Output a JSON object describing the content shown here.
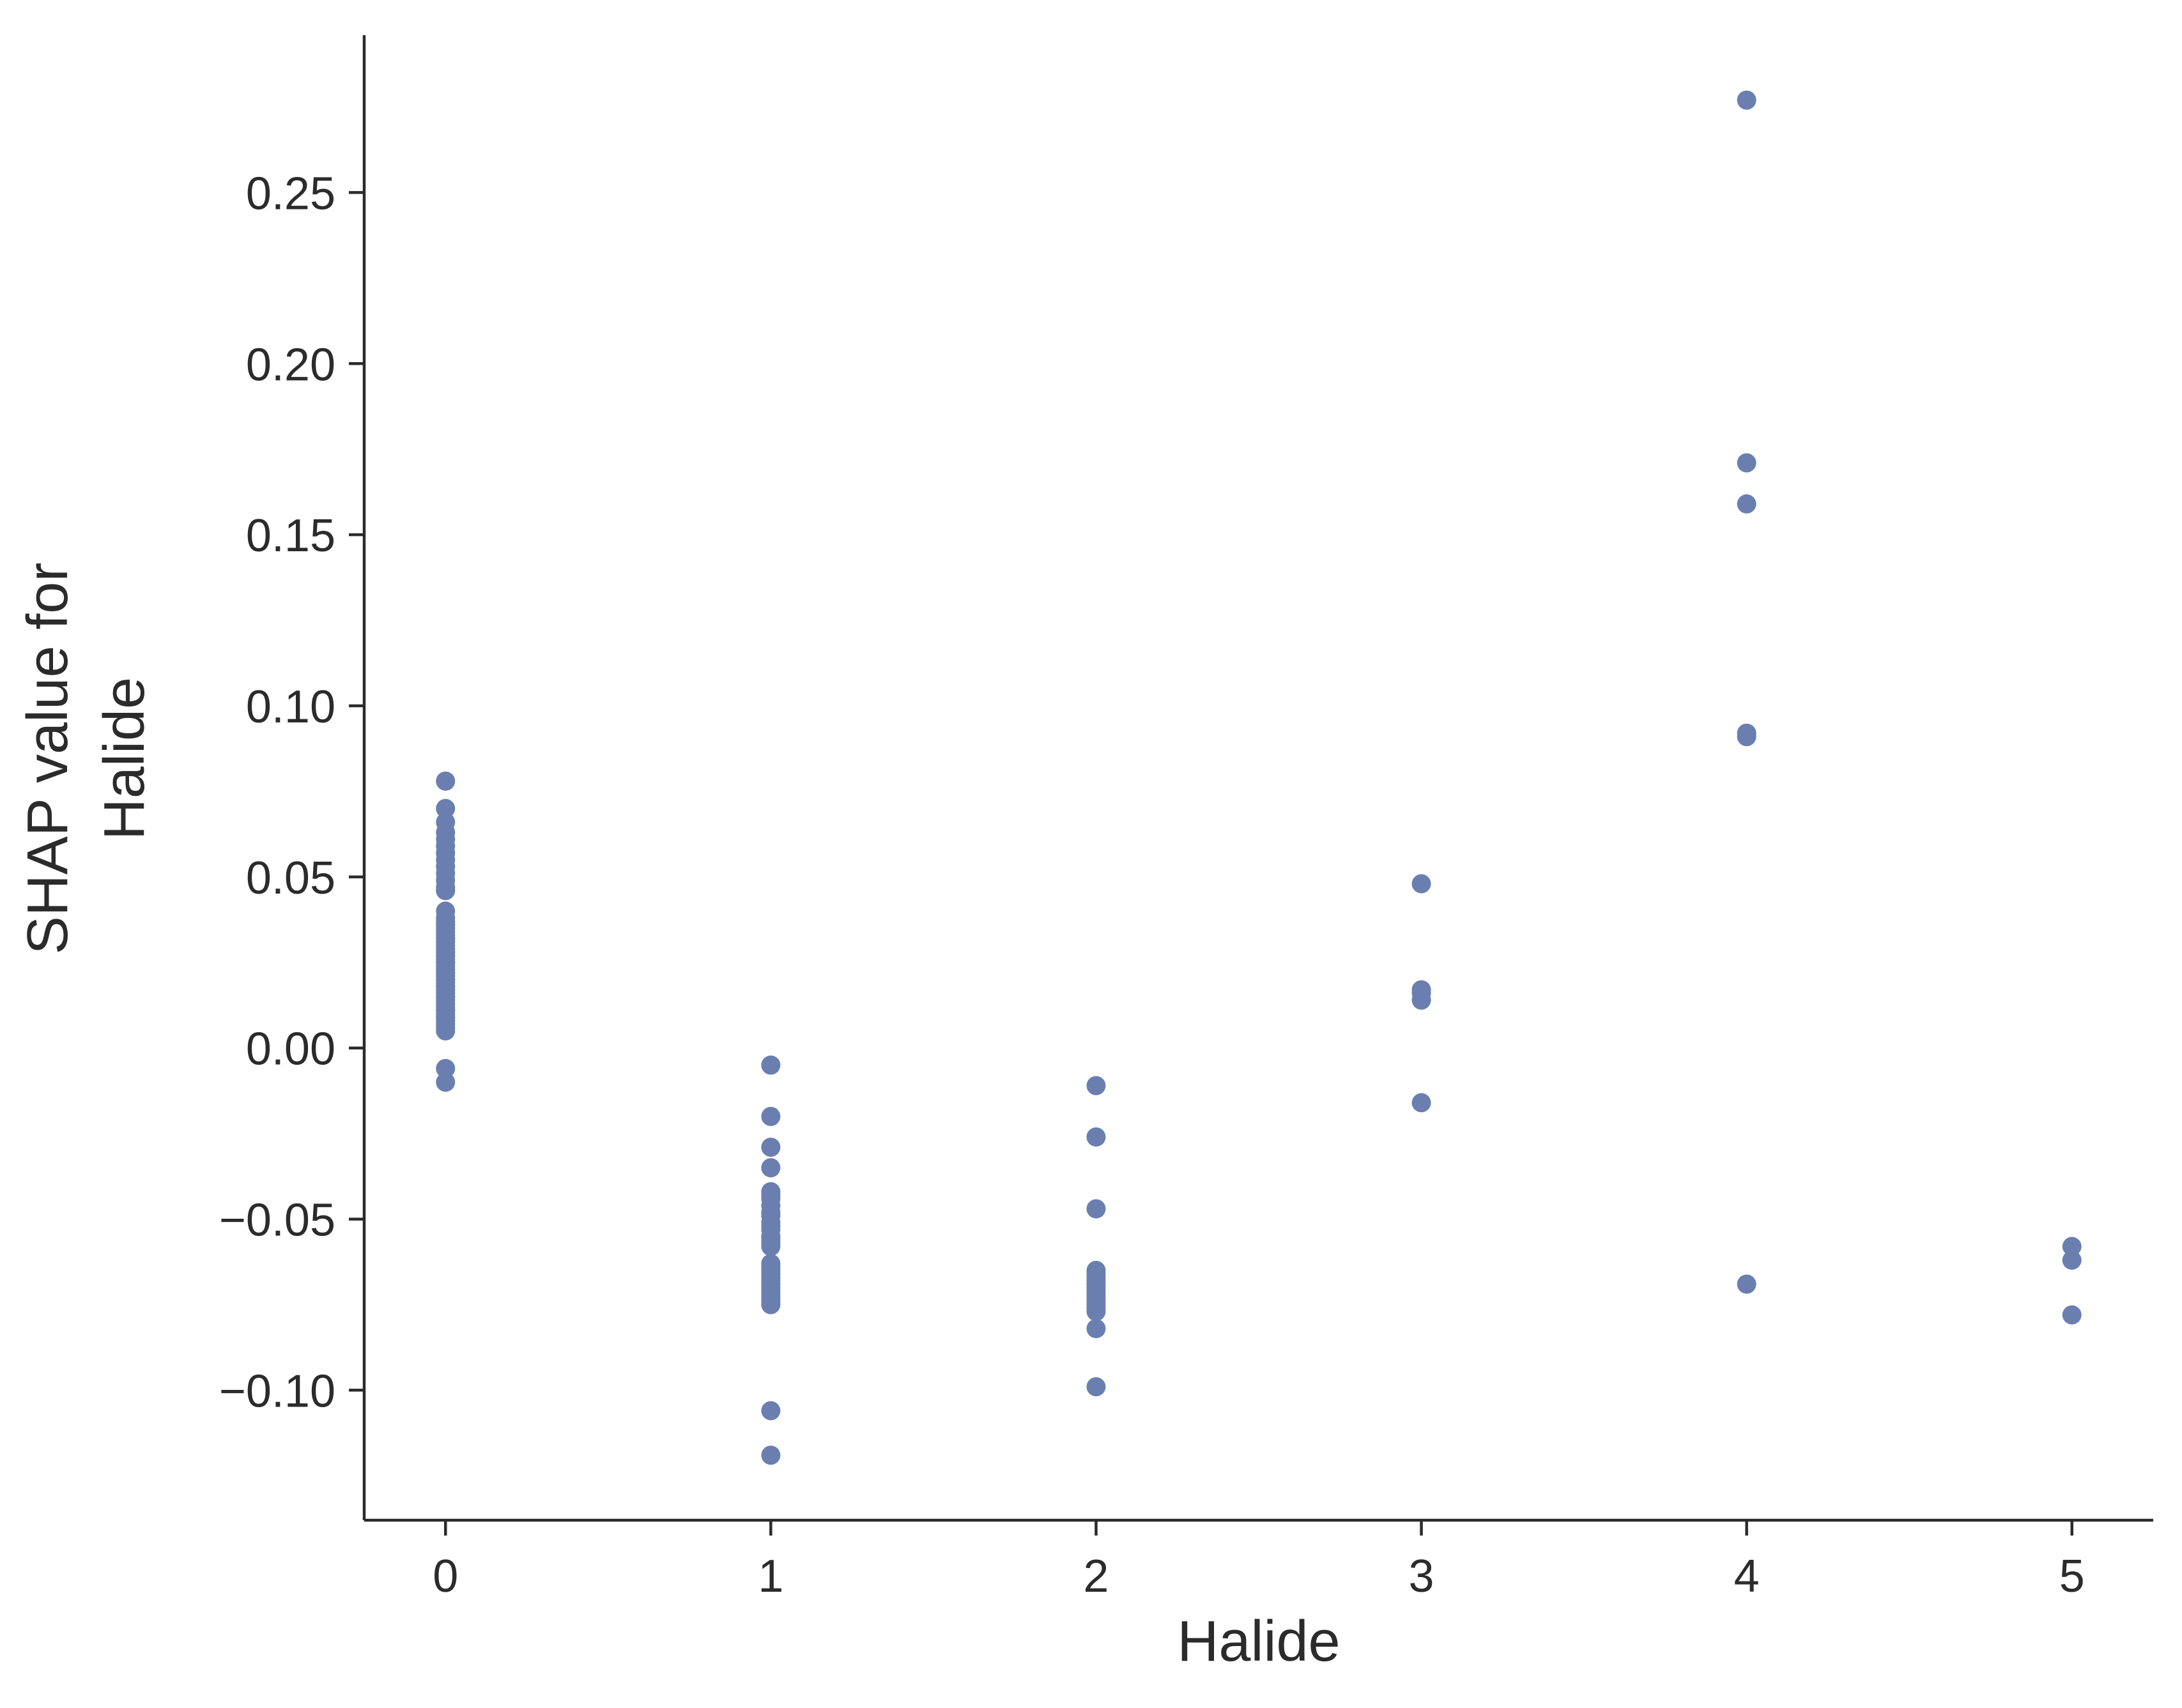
{
  "chart_data": {
    "type": "scatter",
    "title": "",
    "xlabel": "Halide",
    "ylabel": [
      "SHAP value for",
      "Halide"
    ],
    "xlim": [
      -0.25,
      5.25
    ],
    "ylim": [
      -0.138,
      0.296
    ],
    "grid": false,
    "x_ticks": [
      0,
      1,
      2,
      3,
      4,
      5
    ],
    "x_tick_labels": [
      "0",
      "1",
      "2",
      "3",
      "4",
      "5"
    ],
    "y_ticks": [
      -0.1,
      -0.05,
      0.0,
      0.05,
      0.1,
      0.15,
      0.2,
      0.25
    ],
    "y_tick_labels": [
      "−0.10",
      "−0.05",
      "0.00",
      "0.05",
      "0.10",
      "0.15",
      "0.20",
      "0.25"
    ],
    "point_color": "#6a7fb0",
    "axis_color": "#2b2b2b",
    "series": [
      {
        "x": [
          0,
          0,
          0,
          0,
          0,
          0,
          0,
          0,
          0,
          0,
          0,
          0,
          0,
          0,
          0,
          0,
          0,
          0,
          0,
          0,
          0,
          0,
          0,
          0,
          0,
          0,
          0,
          0,
          0,
          0,
          0,
          0,
          0,
          0,
          0,
          0,
          0,
          0,
          0,
          0,
          0,
          0,
          0,
          0,
          0,
          0,
          0,
          0,
          0,
          0,
          0,
          0,
          0,
          0,
          0,
          0,
          0,
          0,
          0,
          0,
          1,
          1,
          1,
          1,
          1,
          1,
          1,
          1,
          1,
          1,
          1,
          1,
          1,
          1,
          1,
          1,
          1,
          1,
          1,
          1,
          1,
          1,
          1,
          1,
          1,
          1,
          1,
          1,
          1,
          1,
          1,
          1,
          2,
          2,
          2,
          2,
          2,
          2,
          2,
          2,
          2,
          2,
          2,
          2,
          2,
          2,
          2,
          2,
          2,
          2,
          3,
          3,
          3,
          3,
          3,
          4,
          4,
          4,
          4,
          4,
          4,
          5,
          5,
          5
        ],
        "y": [
          0.078,
          0.07,
          0.066,
          0.063,
          0.061,
          0.059,
          0.057,
          0.055,
          0.053,
          0.051,
          0.049,
          0.047,
          0.046,
          0.04,
          0.038,
          0.037,
          0.036,
          0.035,
          0.034,
          0.033,
          0.032,
          0.031,
          0.03,
          0.029,
          0.028,
          0.027,
          0.026,
          0.025,
          0.024,
          0.023,
          0.022,
          0.021,
          0.02,
          0.019,
          0.018,
          0.017,
          0.016,
          0.015,
          0.014,
          0.013,
          0.012,
          0.011,
          0.01,
          0.009,
          0.008,
          0.007,
          0.006,
          0.005,
          0.036,
          0.032,
          0.028,
          0.025,
          0.022,
          0.018,
          0.015,
          0.011,
          0.009,
          0.02,
          -0.006,
          -0.01,
          -0.005,
          -0.02,
          -0.029,
          -0.035,
          -0.042,
          -0.044,
          -0.046,
          -0.048,
          -0.051,
          -0.053,
          -0.055,
          -0.057,
          -0.058,
          -0.063,
          -0.065,
          -0.066,
          -0.067,
          -0.068,
          -0.069,
          -0.07,
          -0.071,
          -0.072,
          -0.073,
          -0.074,
          -0.075,
          -0.052,
          -0.043,
          -0.049,
          -0.056,
          -0.064,
          -0.106,
          -0.119,
          -0.011,
          -0.026,
          -0.047,
          -0.065,
          -0.066,
          -0.067,
          -0.068,
          -0.069,
          -0.07,
          -0.071,
          -0.072,
          -0.073,
          -0.074,
          -0.075,
          -0.076,
          -0.077,
          -0.082,
          -0.099,
          0.048,
          0.017,
          0.016,
          0.014,
          -0.016,
          0.277,
          0.171,
          0.159,
          0.092,
          0.091,
          -0.069,
          -0.058,
          -0.062,
          -0.078
        ]
      }
    ]
  }
}
